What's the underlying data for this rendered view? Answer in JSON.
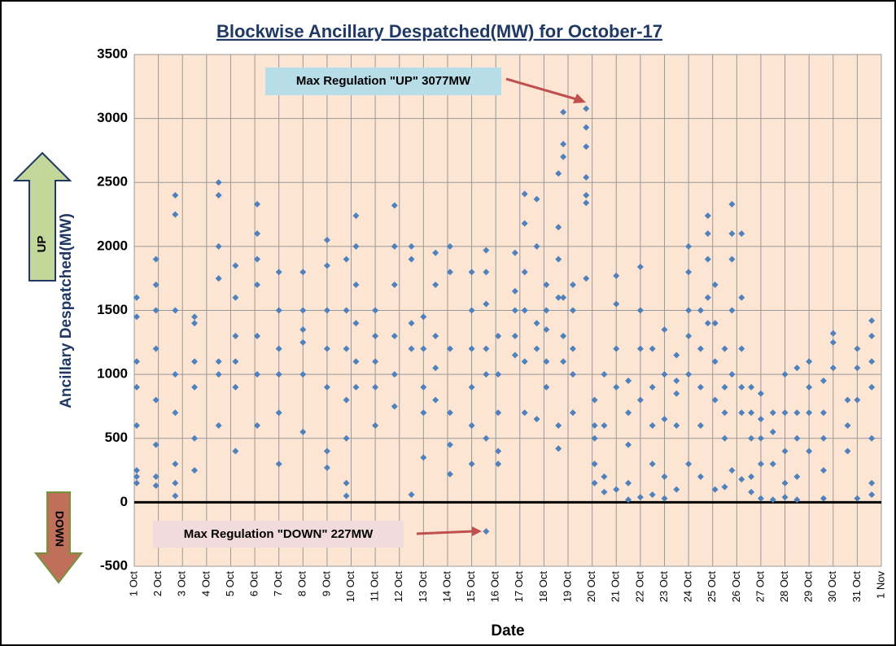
{
  "chart_data": {
    "type": "scatter",
    "title": "Blockwise Ancillary Despatched(MW) for October-17",
    "y_label": "Ancillary Despatched(MW)",
    "x_label": "Date",
    "annotations": [
      "Max Regulation \"UP\" 3077MW",
      "Max Regulation \"DOWN\" 227MW"
    ],
    "up_label": "UP",
    "down_label": "DOWN",
    "color": "#4f81bd",
    "grid": true,
    "ylim": [
      -500,
      3500
    ],
    "yticks": [
      -500,
      0,
      500,
      1000,
      1500,
      2000,
      2500,
      3000,
      3500
    ],
    "xlim": [
      1,
      32
    ],
    "xticks": [
      {
        "value": 1,
        "label": "1 Oct"
      },
      {
        "value": 2,
        "label": "2 Oct"
      },
      {
        "value": 3,
        "label": "3 Oct"
      },
      {
        "value": 4,
        "label": "4 Oct"
      },
      {
        "value": 5,
        "label": "5 Oct"
      },
      {
        "value": 6,
        "label": "6 Oct"
      },
      {
        "value": 7,
        "label": "7 Oct"
      },
      {
        "value": 8,
        "label": "8 Oct"
      },
      {
        "value": 9,
        "label": "9 Oct"
      },
      {
        "value": 10,
        "label": "10 Oct"
      },
      {
        "value": 11,
        "label": "11 Oct"
      },
      {
        "value": 12,
        "label": "12 Oct"
      },
      {
        "value": 13,
        "label": "13 Oct"
      },
      {
        "value": 14,
        "label": "14 Oct"
      },
      {
        "value": 15,
        "label": "15 Oct"
      },
      {
        "value": 16,
        "label": "16 Oct"
      },
      {
        "value": 17,
        "label": "17 Oct"
      },
      {
        "value": 18,
        "label": "18 Oct"
      },
      {
        "value": 19,
        "label": "19 Oct"
      },
      {
        "value": 20,
        "label": "20 Oct"
      },
      {
        "value": 21,
        "label": "21 Oct"
      },
      {
        "value": 22,
        "label": "22 Oct"
      },
      {
        "value": 23,
        "label": "23 Oct"
      },
      {
        "value": 24,
        "label": "24 Oct"
      },
      {
        "value": 25,
        "label": "25 Oct"
      },
      {
        "value": 26,
        "label": "26 Oct"
      },
      {
        "value": 27,
        "label": "27 Oct"
      },
      {
        "value": 28,
        "label": "28 Oct"
      },
      {
        "value": 29,
        "label": "29 Oct"
      },
      {
        "value": 30,
        "label": "30 Oct"
      },
      {
        "value": 31,
        "label": "31 Oct"
      },
      {
        "value": 32,
        "label": "1 Nov"
      }
    ],
    "x": [
      1.1,
      1.1,
      1.1,
      1.1,
      1.1,
      1.1,
      1.1,
      1.1,
      1.9,
      1.9,
      1.9,
      1.9,
      1.9,
      1.9,
      1.9,
      1.9,
      2.7,
      2.7,
      2.7,
      2.7,
      2.7,
      2.7,
      2.7,
      2.7,
      3.5,
      3.5,
      3.5,
      3.5,
      3.5,
      3.5,
      4.5,
      4.5,
      4.5,
      4.5,
      4.5,
      4.5,
      4.5,
      5.2,
      5.2,
      5.2,
      5.2,
      5.2,
      5.2,
      6.1,
      6.1,
      6.1,
      6.1,
      6.1,
      6.1,
      6.1,
      7.0,
      7.0,
      7.0,
      7.0,
      7.0,
      7.0,
      8.0,
      8.0,
      8.0,
      8.0,
      8.0,
      8.0,
      9.0,
      9.0,
      9.0,
      9.0,
      9.0,
      9.0,
      9.0,
      9.8,
      9.8,
      9.8,
      9.8,
      9.8,
      9.8,
      9.8,
      10.2,
      10.2,
      10.2,
      10.2,
      10.2,
      10.2,
      11.0,
      11.0,
      11.0,
      11.0,
      11.0,
      11.8,
      11.8,
      11.8,
      11.8,
      11.8,
      11.8,
      12.5,
      12.5,
      12.5,
      12.5,
      12.5,
      13.0,
      13.0,
      13.0,
      13.0,
      13.0,
      13.5,
      13.5,
      13.5,
      13.5,
      13.5,
      14.1,
      14.1,
      14.1,
      14.1,
      14.1,
      14.1,
      15.0,
      15.0,
      15.0,
      15.0,
      15.0,
      15.0,
      15.6,
      15.6,
      15.6,
      15.6,
      15.6,
      15.6,
      15.6,
      16.1,
      16.1,
      16.1,
      16.1,
      16.1,
      16.8,
      16.8,
      16.8,
      16.8,
      16.8,
      17.2,
      17.2,
      17.2,
      17.2,
      17.2,
      17.2,
      17.7,
      17.7,
      17.7,
      17.7,
      17.7,
      18.1,
      18.1,
      18.1,
      18.1,
      18.1,
      18.6,
      18.6,
      18.6,
      18.6,
      18.6,
      18.6,
      18.8,
      18.8,
      18.8,
      18.8,
      18.8,
      18.8,
      19.2,
      19.2,
      19.2,
      19.2,
      19.2,
      19.75,
      19.75,
      19.75,
      19.75,
      19.75,
      19.75,
      19.75,
      20.1,
      20.1,
      20.1,
      20.1,
      20.1,
      20.5,
      20.5,
      20.5,
      20.5,
      21.0,
      21.0,
      21.0,
      21.0,
      21.0,
      21.5,
      21.5,
      21.5,
      21.5,
      21.5,
      22.0,
      22.0,
      22.0,
      22.0,
      22.0,
      22.5,
      22.5,
      22.5,
      22.5,
      22.5,
      23.0,
      23.0,
      23.0,
      23.0,
      23.0,
      23.5,
      23.5,
      23.5,
      23.5,
      23.5,
      24.0,
      24.0,
      24.0,
      24.0,
      24.0,
      24.0,
      24.5,
      24.5,
      24.5,
      24.5,
      24.5,
      24.8,
      24.8,
      24.8,
      24.8,
      24.8,
      25.1,
      25.1,
      25.1,
      25.1,
      25.1,
      25.5,
      25.5,
      25.5,
      25.5,
      25.5,
      25.8,
      25.8,
      25.8,
      25.8,
      25.8,
      25.8,
      26.2,
      26.2,
      26.2,
      26.2,
      26.2,
      26.2,
      26.6,
      26.6,
      26.6,
      26.6,
      26.6,
      27.0,
      27.0,
      27.0,
      27.0,
      27.0,
      27.5,
      27.5,
      27.5,
      27.5,
      28.0,
      28.0,
      28.0,
      28.0,
      28.0,
      28.5,
      28.5,
      28.5,
      28.5,
      28.5,
      29.0,
      29.0,
      29.0,
      29.0,
      29.6,
      29.6,
      29.6,
      29.6,
      29.6,
      30.0,
      30.0,
      30.0,
      30.6,
      30.6,
      30.6,
      31.0,
      31.0,
      31.0,
      31.0,
      31.6,
      31.6,
      31.6,
      31.6,
      31.6,
      31.6,
      31.6
    ],
    "values": [
      1600,
      1450,
      1100,
      900,
      600,
      250,
      200,
      150,
      1700,
      1900,
      1500,
      1200,
      800,
      450,
      200,
      130,
      2400,
      2250,
      1500,
      1000,
      700,
      300,
      150,
      50,
      1450,
      1400,
      1100,
      900,
      500,
      250,
      2500,
      2400,
      2000,
      1750,
      1100,
      1000,
      600,
      1850,
      1600,
      1300,
      1100,
      900,
      400,
      2330,
      2100,
      1900,
      1700,
      1300,
      1000,
      600,
      1800,
      1500,
      1200,
      1000,
      700,
      300,
      1800,
      1500,
      1350,
      1250,
      1000,
      550,
      2050,
      1850,
      1500,
      1200,
      900,
      400,
      270,
      1900,
      1500,
      1200,
      800,
      500,
      150,
      50,
      2240,
      2000,
      1700,
      1400,
      1100,
      900,
      1500,
      1300,
      1100,
      900,
      600,
      2320,
      2000,
      1700,
      1300,
      1000,
      750,
      2000,
      1900,
      1400,
      1200,
      60,
      1450,
      1200,
      900,
      700,
      350,
      1950,
      1700,
      1300,
      1050,
      800,
      2000,
      1800,
      1200,
      700,
      450,
      220,
      1800,
      1500,
      1200,
      900,
      600,
      300,
      1970,
      1800,
      1550,
      1200,
      1000,
      500,
      -227,
      1300,
      1000,
      700,
      400,
      300,
      1950,
      1650,
      1500,
      1300,
      1150,
      2410,
      2180,
      1800,
      1500,
      1100,
      700,
      2370,
      2000,
      1400,
      1200,
      650,
      1700,
      1500,
      1350,
      1100,
      900,
      2570,
      2150,
      1900,
      1600,
      600,
      420,
      3050,
      2800,
      2700,
      1600,
      1300,
      1100,
      1700,
      1500,
      1200,
      1000,
      700,
      3077,
      2930,
      2780,
      2540,
      2400,
      2340,
      1750,
      600,
      500,
      300,
      150,
      800,
      1000,
      600,
      200,
      80,
      1770,
      1550,
      1200,
      900,
      100,
      950,
      700,
      450,
      150,
      20,
      1840,
      1500,
      1200,
      800,
      40,
      1200,
      900,
      600,
      300,
      60,
      1350,
      1000,
      650,
      200,
      30,
      1150,
      950,
      850,
      600,
      100,
      2000,
      1800,
      1500,
      1300,
      1000,
      300,
      1500,
      1200,
      900,
      600,
      200,
      2240,
      2100,
      1900,
      1600,
      1400,
      1700,
      1400,
      1100,
      800,
      100,
      1200,
      900,
      700,
      500,
      120,
      2330,
      2100,
      1900,
      1500,
      1000,
      250,
      2100,
      1600,
      1200,
      900,
      700,
      180,
      900,
      700,
      500,
      200,
      80,
      850,
      650,
      500,
      300,
      30,
      700,
      550,
      300,
      20,
      1000,
      700,
      400,
      150,
      40,
      1050,
      700,
      500,
      200,
      20,
      1100,
      900,
      700,
      400,
      950,
      700,
      500,
      250,
      30,
      1320,
      1250,
      1050,
      800,
      600,
      400,
      1200,
      1050,
      800,
      30,
      1420,
      1300,
      1100,
      900,
      500,
      150,
      60
    ]
  }
}
